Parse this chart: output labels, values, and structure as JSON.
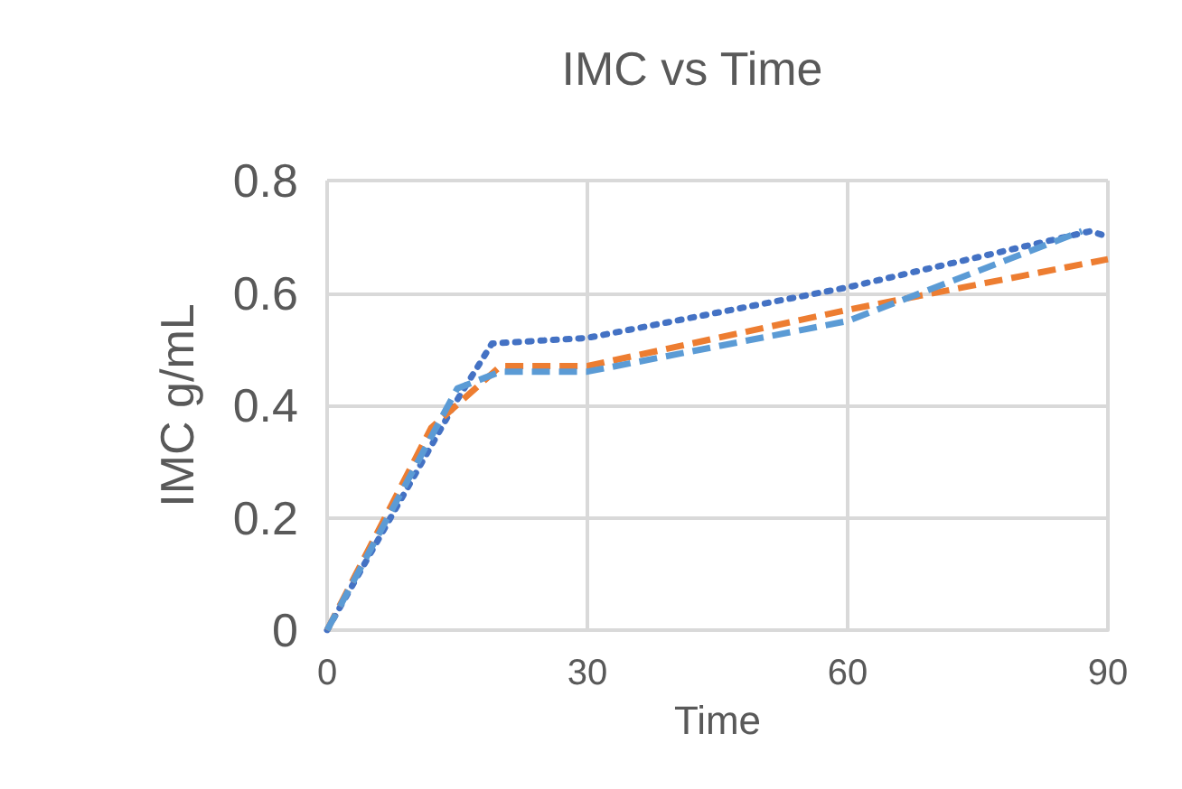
{
  "chart_data": {
    "type": "line",
    "title": "IMC vs Time",
    "xlabel": "Time",
    "ylabel": "IMC g/mL",
    "xlim": [
      0,
      90
    ],
    "xticks": [
      0,
      30,
      60,
      90
    ],
    "ylim": [
      0,
      0.8
    ],
    "yticks": [
      0,
      0.2,
      0.4,
      0.6,
      0.8
    ],
    "grid": true,
    "marker": "none",
    "series": [
      {
        "color": "#4472c4",
        "line_style": "dotted",
        "x": [
          0,
          15,
          19,
          30,
          60,
          88,
          90
        ],
        "values": [
          0,
          0.41,
          0.51,
          0.52,
          0.61,
          0.71,
          0.7
        ]
      },
      {
        "color": "#ed7d31",
        "line_style": "dashed",
        "x": [
          0,
          12,
          20,
          30,
          45,
          60,
          80,
          90
        ],
        "values": [
          0,
          0.36,
          0.47,
          0.47,
          0.52,
          0.57,
          0.63,
          0.66
        ]
      },
      {
        "color": "#5b9bd5",
        "line_style": "dashed",
        "x": [
          0,
          15,
          20,
          30,
          60,
          87
        ],
        "values": [
          0,
          0.43,
          0.46,
          0.46,
          0.55,
          0.71
        ]
      }
    ]
  }
}
